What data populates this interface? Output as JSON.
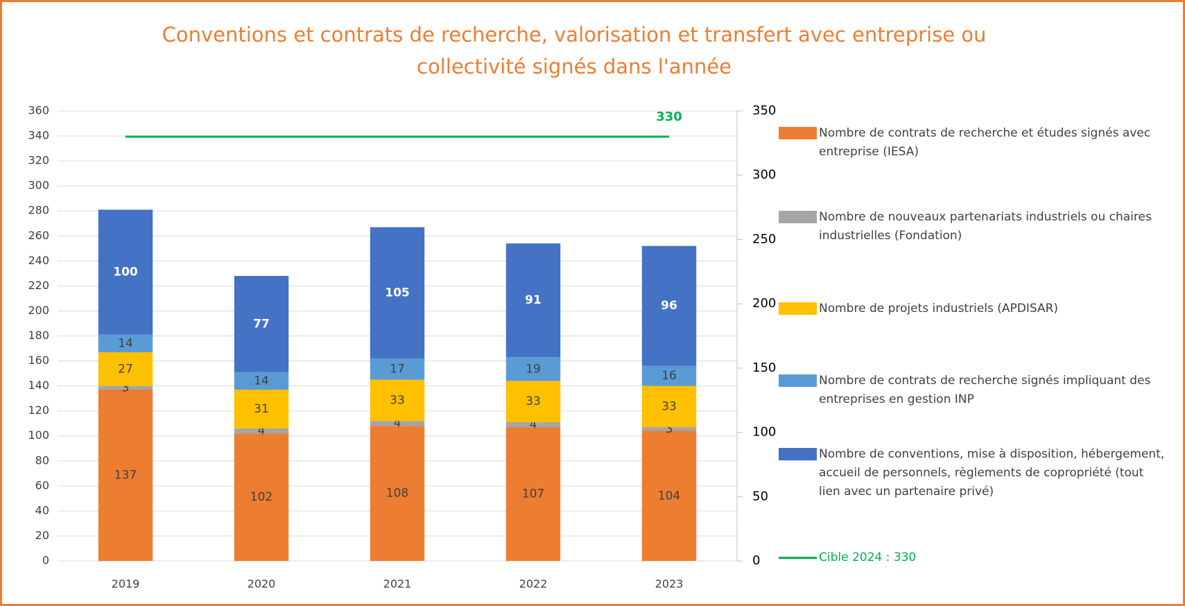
{
  "chart_data": {
    "type": "bar",
    "stacked": true,
    "title": "Conventions et contrats de recherche, valorisation et transfert avec entreprise ou collectivité signés dans l'année",
    "categories": [
      "2019",
      "2020",
      "2021",
      "2022",
      "2023"
    ],
    "series": [
      {
        "name": "Nombre de contrats de recherche et études signés avec entreprise (IESA)",
        "color": "#ED7D31",
        "values": [
          137,
          102,
          108,
          107,
          104
        ]
      },
      {
        "name": "Nombre de nouveaux partenariats industriels ou chaires industrielles (Fondation)",
        "color": "#A5A5A5",
        "values": [
          3,
          4,
          4,
          4,
          3
        ]
      },
      {
        "name": "Nombre de projets industriels (APDISAR)",
        "color": "#FFC000",
        "values": [
          27,
          31,
          33,
          33,
          33
        ]
      },
      {
        "name": "Nombre de contrats de recherche signés impliquant des entreprises en gestion INP",
        "color": "#5B9BD5",
        "values": [
          14,
          14,
          17,
          19,
          16
        ]
      },
      {
        "name": "Nombre de conventions, mise à disposition, hébergement, accueil de personnels, règlements de copropriété (tout lien avec un partenaire privé)",
        "color": "#4472C4",
        "values": [
          100,
          77,
          105,
          91,
          96
        ]
      },
      {
        "name": "Cible 2024 : 330",
        "color": "#00B050",
        "type": "line",
        "axis": "y2",
        "values": [
          330,
          330,
          330,
          330,
          330
        ]
      }
    ],
    "ylim": [
      0,
      360
    ],
    "yticks": [
      0,
      20,
      40,
      60,
      80,
      100,
      120,
      140,
      160,
      180,
      200,
      220,
      240,
      260,
      280,
      300,
      320,
      340,
      360
    ],
    "y2lim": [
      0,
      350
    ],
    "y2ticks": [
      0,
      50,
      100,
      150,
      200,
      250,
      300,
      350
    ],
    "grid": true,
    "legend": "right"
  }
}
